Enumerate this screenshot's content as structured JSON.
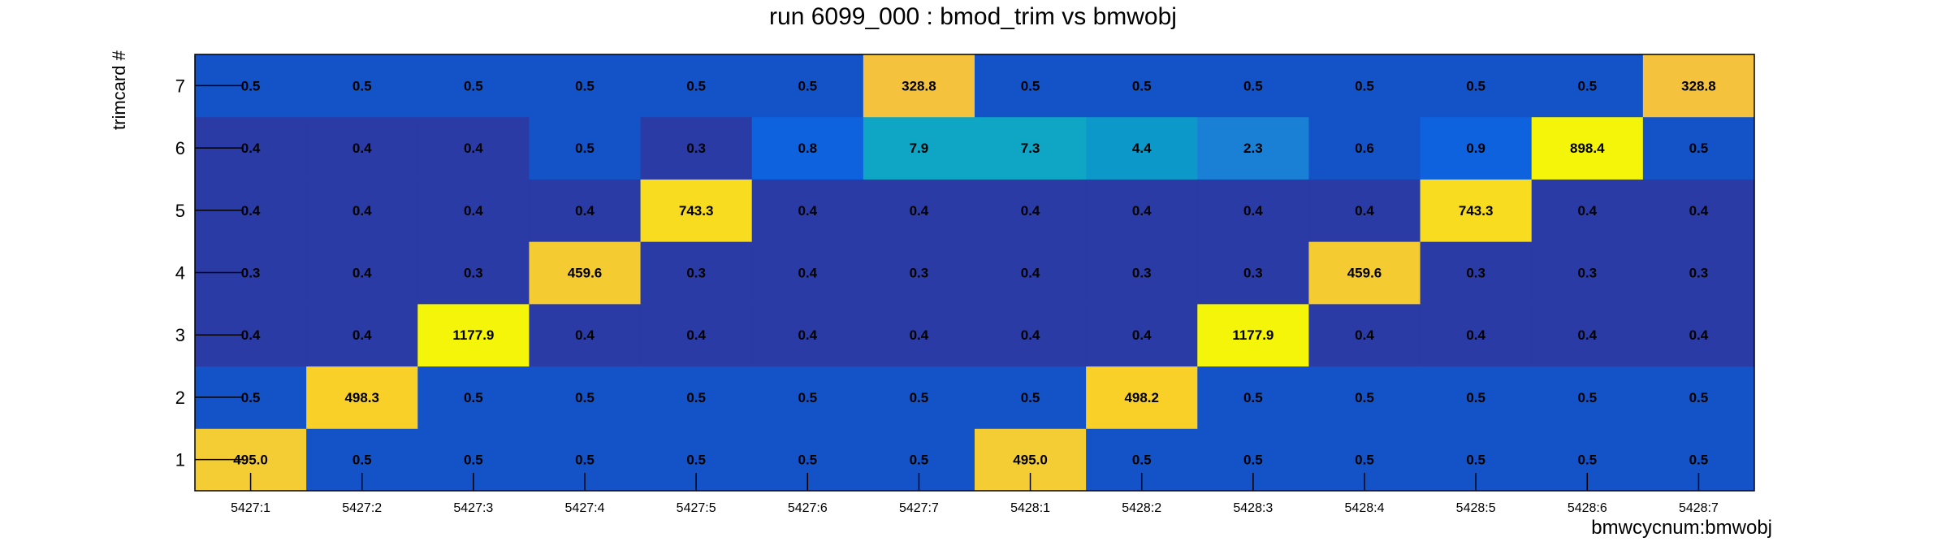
{
  "title": "run 6099_000 : bmod_trim vs bmwobj",
  "chart_data": {
    "type": "heatmap",
    "title": "run 6099_000 : bmod_trim vs bmwobj",
    "xlabel": "bmwcycnum:bmwobj",
    "ylabel": "trimcard #",
    "x_categories": [
      "5427:1",
      "5427:2",
      "5427:3",
      "5427:4",
      "5427:5",
      "5427:6",
      "5427:7",
      "5428:1",
      "5428:2",
      "5428:3",
      "5428:4",
      "5428:5",
      "5428:6",
      "5428:7"
    ],
    "y_categories": [
      "1",
      "2",
      "3",
      "4",
      "5",
      "6",
      "7"
    ],
    "values": [
      [
        "495.0",
        "0.5",
        "0.5",
        "0.5",
        "0.5",
        "0.5",
        "0.5",
        "495.0",
        "0.5",
        "0.5",
        "0.5",
        "0.5",
        "0.5",
        "0.5"
      ],
      [
        "0.5",
        "498.3",
        "0.5",
        "0.5",
        "0.5",
        "0.5",
        "0.5",
        "0.5",
        "498.2",
        "0.5",
        "0.5",
        "0.5",
        "0.5",
        "0.5"
      ],
      [
        "0.4",
        "0.4",
        "1177.9",
        "0.4",
        "0.4",
        "0.4",
        "0.4",
        "0.4",
        "0.4",
        "1177.9",
        "0.4",
        "0.4",
        "0.4",
        "0.4"
      ],
      [
        "0.3",
        "0.4",
        "0.3",
        "459.6",
        "0.3",
        "0.4",
        "0.3",
        "0.4",
        "0.3",
        "0.3",
        "459.6",
        "0.3",
        "0.3",
        "0.3"
      ],
      [
        "0.4",
        "0.4",
        "0.4",
        "0.4",
        "743.3",
        "0.4",
        "0.4",
        "0.4",
        "0.4",
        "0.4",
        "0.4",
        "743.3",
        "0.4",
        "0.4"
      ],
      [
        "0.4",
        "0.4",
        "0.4",
        "0.5",
        "0.3",
        "0.8",
        "7.9",
        "7.3",
        "4.4",
        "2.3",
        "0.6",
        "0.9",
        "898.4",
        "0.5"
      ],
      [
        "0.5",
        "0.5",
        "0.5",
        "0.5",
        "0.5",
        "0.5",
        "328.8",
        "0.5",
        "0.5",
        "0.5",
        "0.5",
        "0.5",
        "0.5",
        "328.8"
      ]
    ],
    "cell_colors": [
      [
        "#f4cd34",
        "#1452c8",
        "#1452c8",
        "#1452c8",
        "#1452c8",
        "#1452c8",
        "#1452c8",
        "#f4cd34",
        "#1452c8",
        "#1452c8",
        "#1452c8",
        "#1452c8",
        "#1452c8",
        "#1452c8"
      ],
      [
        "#1452c8",
        "#f8d027",
        "#1452c8",
        "#1452c8",
        "#1452c8",
        "#1452c8",
        "#1452c8",
        "#1452c8",
        "#f8d027",
        "#1452c8",
        "#1452c8",
        "#1452c8",
        "#1452c8",
        "#1452c8"
      ],
      [
        "#2a3ba5",
        "#2a3ba5",
        "#f5f50a",
        "#2a3ba5",
        "#2a3ba5",
        "#2a3ba5",
        "#2a3ba5",
        "#2a3ba5",
        "#2a3ba5",
        "#f5f50a",
        "#2a3ba5",
        "#2a3ba5",
        "#2a3ba5",
        "#2a3ba5"
      ],
      [
        "#2a3ba5",
        "#2a3ba5",
        "#2a3ba5",
        "#f5cb32",
        "#2a3ba5",
        "#2a3ba5",
        "#2a3ba5",
        "#2a3ba5",
        "#2a3ba5",
        "#2a3ba5",
        "#f5cb32",
        "#2a3ba5",
        "#2a3ba5",
        "#2a3ba5"
      ],
      [
        "#2a3ba5",
        "#2a3ba5",
        "#2a3ba5",
        "#2a3ba5",
        "#f7dc20",
        "#2a3ba5",
        "#2a3ba5",
        "#2a3ba5",
        "#2a3ba5",
        "#2a3ba5",
        "#2a3ba5",
        "#f7dc20",
        "#2a3ba5",
        "#2a3ba5"
      ],
      [
        "#2a3ba5",
        "#2a3ba5",
        "#2a3ba5",
        "#1452c8",
        "#2a3ba5",
        "#0f62de",
        "#0ea6c4",
        "#0ea6c4",
        "#0c98c9",
        "#1a80d6",
        "#1452c8",
        "#0f62de",
        "#f5f50a",
        "#1452c8"
      ],
      [
        "#1452c8",
        "#1452c8",
        "#1452c8",
        "#1452c8",
        "#1452c8",
        "#1452c8",
        "#f4c23c",
        "#1452c8",
        "#1452c8",
        "#1452c8",
        "#1452c8",
        "#1452c8",
        "#1452c8",
        "#f4c23c"
      ]
    ],
    "grid": false,
    "legend": "none"
  }
}
